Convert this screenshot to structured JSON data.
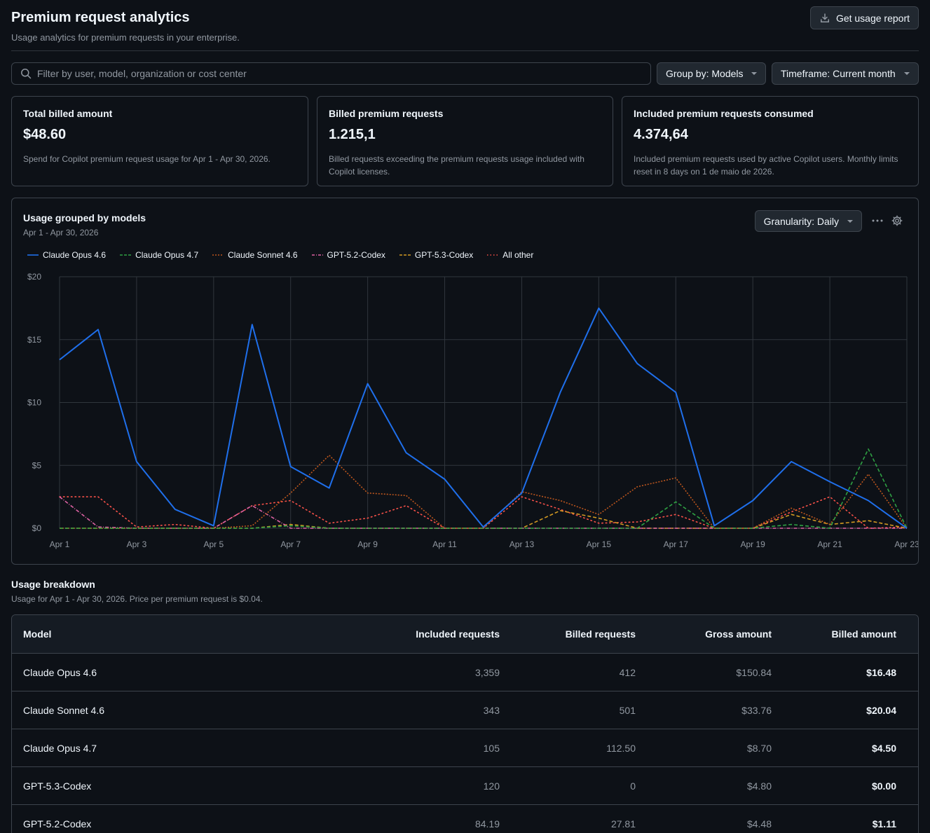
{
  "header": {
    "title": "Premium request analytics",
    "subtitle": "Usage analytics for premium requests in your enterprise.",
    "report_button": "Get usage report"
  },
  "filters": {
    "search_placeholder": "Filter by user, model, organization or cost center",
    "group_by": "Group by: Models",
    "timeframe": "Timeframe: Current month"
  },
  "cards": [
    {
      "title": "Total billed amount",
      "value": "$48.60",
      "desc": "Spend for Copilot premium request usage for Apr 1 - Apr 30, 2026."
    },
    {
      "title": "Billed premium requests",
      "value": "1.215,1",
      "desc": "Billed requests exceeding the premium requests usage included with Copilot licenses."
    },
    {
      "title": "Included premium requests consumed",
      "value": "4.374,64",
      "desc": "Included premium requests used by active Copilot users. Monthly limits reset in 8 days on 1 de maio de 2026."
    }
  ],
  "chart_panel": {
    "title": "Usage grouped by models",
    "subtitle": "Apr 1 - Apr 30, 2026",
    "granularity": "Granularity: Daily"
  },
  "chart_data": {
    "type": "line",
    "x": [
      "Apr 1",
      "Apr 2",
      "Apr 3",
      "Apr 4",
      "Apr 5",
      "Apr 6",
      "Apr 7",
      "Apr 8",
      "Apr 9",
      "Apr 10",
      "Apr 11",
      "Apr 12",
      "Apr 13",
      "Apr 14",
      "Apr 15",
      "Apr 16",
      "Apr 17",
      "Apr 18",
      "Apr 19",
      "Apr 20",
      "Apr 21",
      "Apr 22",
      "Apr 23"
    ],
    "x_tick_labels": [
      "Apr 1",
      "Apr 3",
      "Apr 5",
      "Apr 7",
      "Apr 9",
      "Apr 11",
      "Apr 13",
      "Apr 15",
      "Apr 17",
      "Apr 19",
      "Apr 21",
      "Apr 23"
    ],
    "y_tick_labels": [
      "$0",
      "$5",
      "$10",
      "$15",
      "$20"
    ],
    "ylim": [
      0,
      20
    ],
    "grid": true,
    "legend_position": "top-left",
    "series": [
      {
        "name": "Claude Opus 4.6",
        "color": "#1f6feb",
        "style": "solid",
        "values": [
          13.4,
          15.8,
          5.3,
          1.5,
          0.2,
          16.2,
          4.9,
          3.2,
          11.5,
          6.0,
          3.9,
          0.1,
          2.8,
          10.8,
          17.5,
          13.1,
          10.8,
          0.2,
          2.2,
          5.3,
          3.7,
          2.2,
          0
        ]
      },
      {
        "name": "Claude Opus 4.7",
        "color": "#2ea043",
        "style": "dashed",
        "values": [
          0,
          0,
          0,
          0,
          0,
          0,
          0.2,
          0,
          0,
          0,
          0,
          0,
          0,
          0,
          0,
          0,
          2.1,
          0,
          0,
          0.3,
          0,
          6.3,
          0
        ]
      },
      {
        "name": "Claude Sonnet 4.6",
        "color": "#bd561d",
        "style": "dotted",
        "values": [
          0,
          0,
          0,
          0,
          0,
          0.2,
          2.8,
          5.8,
          2.8,
          2.6,
          0,
          0,
          2.9,
          2.2,
          1.1,
          3.3,
          4.0,
          0,
          0,
          1.6,
          0.3,
          4.3,
          0
        ]
      },
      {
        "name": "GPT-5.2-Codex",
        "color": "#db61a2",
        "style": "dashdot",
        "values": [
          2.5,
          0.1,
          0,
          0,
          0,
          1.8,
          0,
          0,
          0,
          0,
          0,
          0,
          0,
          0,
          0,
          0,
          0,
          0,
          0,
          0,
          0,
          0,
          0
        ]
      },
      {
        "name": "GPT-5.3-Codex",
        "color": "#d29922",
        "style": "dashed",
        "values": [
          0,
          0,
          0,
          0,
          0,
          0,
          0.3,
          0,
          0,
          0,
          0,
          0,
          0,
          1.4,
          0.8,
          0,
          0,
          0,
          0,
          1.1,
          0.3,
          0.6,
          0
        ]
      },
      {
        "name": "All other",
        "color": "#f85149",
        "style": "sparse",
        "values": [
          2.5,
          2.5,
          0.1,
          0.3,
          0,
          1.8,
          2.2,
          0.4,
          0.8,
          1.8,
          0,
          0,
          2.5,
          1.5,
          0.4,
          0.5,
          1.1,
          0,
          0,
          1.3,
          2.5,
          0,
          0.1
        ]
      }
    ]
  },
  "breakdown": {
    "title": "Usage breakdown",
    "subtitle": "Usage for Apr 1 - Apr 30, 2026. Price per premium request is $0.04.",
    "columns": [
      "Model",
      "Included requests",
      "Billed requests",
      "Gross amount",
      "Billed amount"
    ],
    "rows": [
      [
        "Claude Opus 4.6",
        "3,359",
        "412",
        "$150.84",
        "$16.48"
      ],
      [
        "Claude Sonnet 4.6",
        "343",
        "501",
        "$33.76",
        "$20.04"
      ],
      [
        "Claude Opus 4.7",
        "105",
        "112.50",
        "$8.70",
        "$4.50"
      ],
      [
        "GPT-5.3-Codex",
        "120",
        "0",
        "$4.80",
        "$0.00"
      ],
      [
        "GPT-5.2-Codex",
        "84.19",
        "27.81",
        "$4.48",
        "$1.11"
      ]
    ]
  }
}
